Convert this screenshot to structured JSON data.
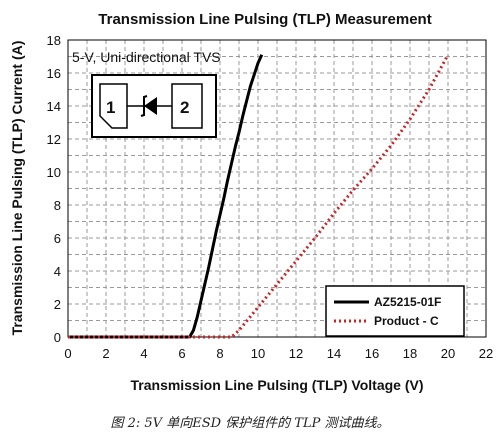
{
  "caption": "图 2: 5V 单向ESD 保护组件的 TLP 测试曲线。",
  "inset_note": "5-V, Uni-directional TVS",
  "symbol": {
    "pin1_label": "1",
    "pin2_label": "2"
  },
  "chart_data": {
    "type": "line",
    "title": "Transmission Line Pulsing (TLP) Measurement",
    "xlabel": "Transmission Line Pulsing (TLP) Voltage (V)",
    "ylabel": "Transmission Line Pulsing (TLP) Current (A)",
    "xlim": [
      0,
      22
    ],
    "ylim": [
      0,
      18
    ],
    "xticks": [
      0,
      2,
      4,
      6,
      8,
      10,
      12,
      14,
      16,
      18,
      20,
      22
    ],
    "yticks": [
      0,
      2,
      4,
      6,
      8,
      10,
      12,
      14,
      16,
      18
    ],
    "grid": true,
    "legend": "bottom-right",
    "series": [
      {
        "name": "AZ5215-01F",
        "color": "#000000",
        "style": "solid",
        "x": [
          0,
          6.4,
          6.6,
          6.8,
          7.0,
          7.2,
          7.4,
          7.6,
          7.8,
          8.0,
          8.2,
          8.4,
          8.6,
          8.8,
          9.0,
          9.2,
          9.4,
          9.6,
          9.8,
          10.0,
          10.2
        ],
        "y": [
          0,
          0,
          0.4,
          1.2,
          2.2,
          3.2,
          4.2,
          5.3,
          6.4,
          7.4,
          8.4,
          9.5,
          10.5,
          11.5,
          12.4,
          13.4,
          14.3,
          15.2,
          15.9,
          16.6,
          17.1
        ]
      },
      {
        "name": "Product - C",
        "color": "#cc2222",
        "style": "dotted",
        "x": [
          0,
          8.6,
          9.0,
          10,
          11,
          12,
          13,
          14,
          15,
          16,
          17,
          18,
          19,
          20
        ],
        "y": [
          0,
          0,
          0.4,
          1.8,
          3.2,
          4.6,
          6.0,
          7.5,
          8.9,
          10.2,
          11.6,
          13.2,
          15.0,
          17.1
        ]
      }
    ]
  }
}
